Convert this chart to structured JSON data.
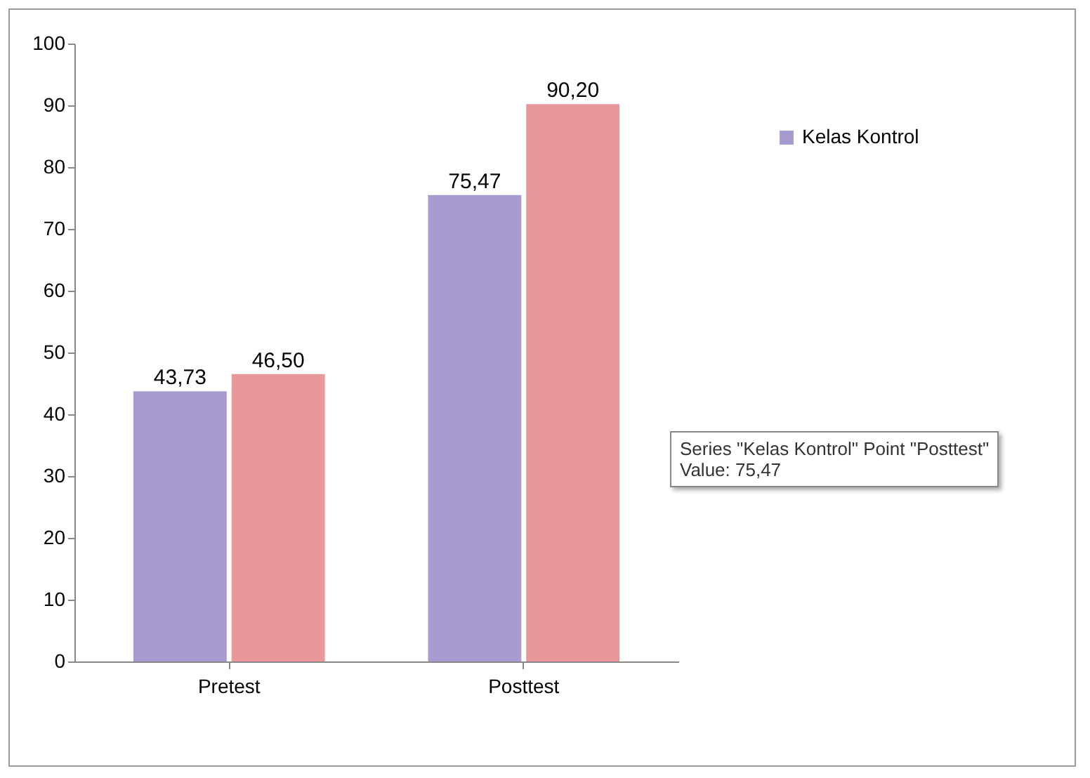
{
  "chart_data": {
    "type": "bar",
    "categories": [
      "Pretest",
      "Posttest"
    ],
    "series": [
      {
        "name": "Kelas Kontrol",
        "color": "#a89bcf",
        "values": [
          43.73,
          75.47
        ],
        "value_labels": [
          "43,73",
          "75,47"
        ]
      },
      {
        "color": "#e8989a",
        "values": [
          46.5,
          90.2
        ],
        "value_labels": [
          "46,50",
          "90,20"
        ]
      }
    ],
    "ylim": [
      0,
      100
    ],
    "yticks": [
      0,
      10,
      20,
      30,
      40,
      50,
      60,
      70,
      80,
      90,
      100
    ],
    "grid": false,
    "legend": "right",
    "annotations": [
      "Series \"Kelas Kontrol\" Point \"Posttest\"\nValue: 75,47"
    ]
  }
}
